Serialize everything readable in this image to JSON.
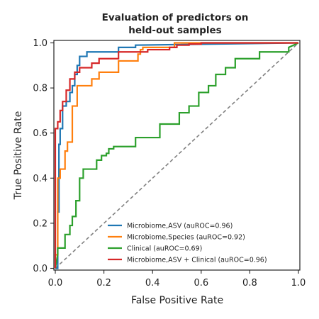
{
  "chart_data": {
    "type": "line",
    "title": [
      "Evaluation of predictors on",
      "held-out samples"
    ],
    "xlabel": "False Positive Rate",
    "ylabel": "True Positive Rate",
    "xlim": [
      0,
      1
    ],
    "ylim": [
      0,
      1
    ],
    "xticks": [
      "0.0",
      "0.2",
      "0.4",
      "0.6",
      "0.8",
      "1.0"
    ],
    "yticks": [
      "0.0",
      "0.2",
      "0.4",
      "0.6",
      "0.8",
      "1.0"
    ],
    "grid": false,
    "legend_position": "lower-right",
    "reference_line": {
      "style": "dashed",
      "color": "#808080",
      "x": [
        0,
        1
      ],
      "y": [
        0,
        1
      ]
    },
    "series": [
      {
        "name": "Microbiome,ASV (auROC=0.96)",
        "color": "#1f77b4",
        "x": [
          0,
          0.01,
          0.01,
          0.015,
          0.015,
          0.02,
          0.02,
          0.03,
          0.03,
          0.045,
          0.045,
          0.06,
          0.06,
          0.07,
          0.07,
          0.08,
          0.08,
          0.09,
          0.09,
          0.1,
          0.1,
          0.13,
          0.13,
          0.26,
          0.26,
          0.33,
          0.33,
          1.0
        ],
        "y": [
          0,
          0,
          0.25,
          0.25,
          0.55,
          0.55,
          0.62,
          0.62,
          0.72,
          0.72,
          0.74,
          0.74,
          0.78,
          0.78,
          0.81,
          0.81,
          0.86,
          0.86,
          0.9,
          0.9,
          0.94,
          0.94,
          0.96,
          0.96,
          0.98,
          0.98,
          0.99,
          1.0
        ]
      },
      {
        "name": "Microbiome,Species (auROC=0.92)",
        "color": "#ff7f0e",
        "x": [
          0,
          0.0,
          0.01,
          0.01,
          0.02,
          0.02,
          0.04,
          0.04,
          0.05,
          0.05,
          0.07,
          0.07,
          0.09,
          0.09,
          0.15,
          0.15,
          0.18,
          0.18,
          0.26,
          0.26,
          0.34,
          0.34,
          0.35,
          0.35,
          0.36,
          0.36,
          0.49,
          0.49,
          1.0
        ],
        "y": [
          0,
          0.06,
          0.06,
          0.4,
          0.4,
          0.44,
          0.44,
          0.52,
          0.52,
          0.56,
          0.56,
          0.72,
          0.72,
          0.81,
          0.81,
          0.84,
          0.84,
          0.87,
          0.87,
          0.92,
          0.92,
          0.95,
          0.95,
          0.97,
          0.97,
          0.98,
          0.98,
          1.0,
          1.0
        ]
      },
      {
        "name": "Clinical (auROC=0.69)",
        "color": "#2ca02c",
        "x": [
          0,
          0.01,
          0.01,
          0.04,
          0.04,
          0.06,
          0.06,
          0.07,
          0.07,
          0.085,
          0.085,
          0.1,
          0.1,
          0.115,
          0.115,
          0.17,
          0.17,
          0.19,
          0.19,
          0.21,
          0.21,
          0.22,
          0.22,
          0.24,
          0.24,
          0.33,
          0.33,
          0.43,
          0.43,
          0.51,
          0.51,
          0.55,
          0.55,
          0.59,
          0.59,
          0.63,
          0.63,
          0.66,
          0.66,
          0.7,
          0.7,
          0.74,
          0.74,
          0.84,
          0.84,
          0.96,
          0.96,
          1.0
        ],
        "y": [
          0,
          0.06,
          0.09,
          0.09,
          0.15,
          0.15,
          0.19,
          0.19,
          0.23,
          0.23,
          0.3,
          0.3,
          0.4,
          0.4,
          0.44,
          0.44,
          0.48,
          0.48,
          0.5,
          0.5,
          0.51,
          0.51,
          0.53,
          0.53,
          0.54,
          0.54,
          0.58,
          0.58,
          0.64,
          0.64,
          0.69,
          0.69,
          0.72,
          0.72,
          0.78,
          0.78,
          0.81,
          0.81,
          0.86,
          0.86,
          0.89,
          0.89,
          0.93,
          0.93,
          0.96,
          0.96,
          0.98,
          1.0
        ]
      },
      {
        "name": "Microbiome,ASV + Clinical (auROC=0.96)",
        "color": "#d62728",
        "x": [
          0,
          0.0,
          0.01,
          0.01,
          0.02,
          0.02,
          0.03,
          0.03,
          0.045,
          0.045,
          0.06,
          0.06,
          0.08,
          0.08,
          0.1,
          0.1,
          0.15,
          0.15,
          0.18,
          0.18,
          0.26,
          0.26,
          0.38,
          0.38,
          0.47,
          0.47,
          0.5,
          0.5,
          0.55,
          0.55,
          0.6,
          0.6,
          1.0
        ],
        "y": [
          0,
          0.62,
          0.62,
          0.65,
          0.65,
          0.7,
          0.7,
          0.74,
          0.74,
          0.79,
          0.79,
          0.84,
          0.84,
          0.87,
          0.87,
          0.89,
          0.89,
          0.91,
          0.91,
          0.93,
          0.93,
          0.96,
          0.96,
          0.97,
          0.97,
          0.98,
          0.98,
          0.99,
          0.99,
          0.995,
          0.995,
          1.0,
          1.0
        ]
      }
    ]
  }
}
